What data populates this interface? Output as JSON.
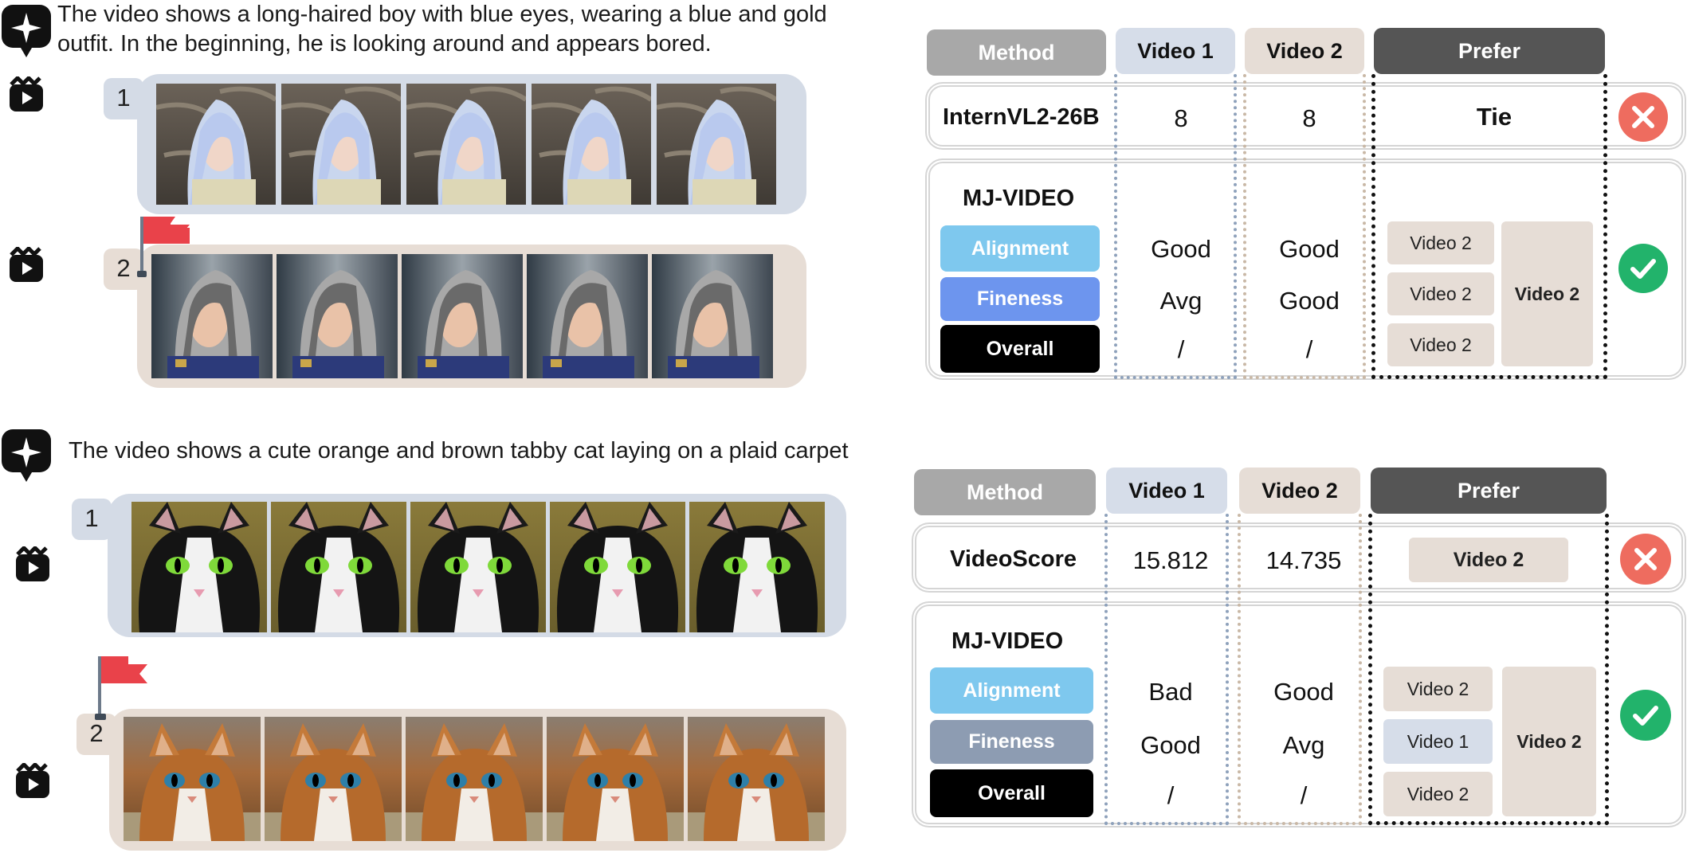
{
  "colors": {
    "blue_strip": "#d4dbe6",
    "beige_strip": "#e7ddd5",
    "alignment": "#7ec8ee",
    "fineness_a": "#6d95ee",
    "fineness_b": "#8d9cb2",
    "overall": "#000000",
    "wrong": "#ee6c5f",
    "right": "#22b36b",
    "flag": "#e9424a"
  },
  "icons": {
    "prompt": "sparkle-chat-icon",
    "video": "video-clapper-icon",
    "flag": "preferred-flag-icon",
    "wrong": "cross-circle-icon",
    "right": "check-circle-icon"
  },
  "example1": {
    "prompt_line1": "The video shows a long-haired boy with blue eyes, wearing a blue and gold",
    "prompt_line2": "outfit. In the beginning, he is looking around and appears bored.",
    "video1_index": "1",
    "video2_index": "2",
    "table": {
      "header": {
        "method": "Method",
        "video1": "Video 1",
        "video2": "Video 2",
        "prefer": "Prefer"
      },
      "baseline": {
        "name": "InternVL2-26B",
        "video1": "8",
        "video2": "8",
        "prefer": "Tie"
      },
      "mj": {
        "name": "MJ-VIDEO",
        "labels": {
          "alignment": "Alignment",
          "fineness": "Fineness",
          "overall": "Overall"
        },
        "video1": {
          "alignment": "Good",
          "fineness": "Avg",
          "overall": "/"
        },
        "video2": {
          "alignment": "Good",
          "fineness": "Good",
          "overall": "/"
        },
        "prefer": {
          "alignment": "Video 2",
          "fineness": "Video 2",
          "overall": "Video 2"
        },
        "final": "Video 2"
      }
    }
  },
  "example2": {
    "prompt_line1": "The video shows a cute orange and brown tabby cat laying on a plaid carpet",
    "video1_index": "1",
    "video2_index": "2",
    "table": {
      "header": {
        "method": "Method",
        "video1": "Video 1",
        "video2": "Video 2",
        "prefer": "Prefer"
      },
      "baseline": {
        "name": "VideoScore",
        "video1": "15.812",
        "video2": "14.735",
        "prefer": "Video 2"
      },
      "mj": {
        "name": "MJ-VIDEO",
        "labels": {
          "alignment": "Alignment",
          "fineness": "Fineness",
          "overall": "Overall"
        },
        "video1": {
          "alignment": "Bad",
          "fineness": "Good",
          "overall": "/"
        },
        "video2": {
          "alignment": "Good",
          "fineness": "Avg",
          "overall": "/"
        },
        "prefer": {
          "alignment": "Video 2",
          "fineness": "Video 1",
          "overall": "Video 2"
        },
        "final": "Video 2"
      }
    }
  }
}
